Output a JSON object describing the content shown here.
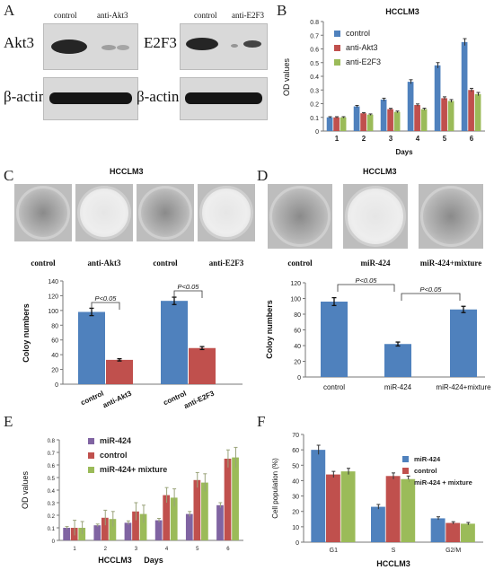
{
  "panels": {
    "A": {
      "letter": "A",
      "left": {
        "lanes": [
          "control",
          "anti-Akt3"
        ],
        "protein": "Akt3",
        "loading": "β-actin"
      },
      "right": {
        "lanes": [
          "control",
          "anti-E2F3"
        ],
        "protein": "E2F3",
        "loading": "β-actin"
      }
    },
    "B": {
      "letter": "B",
      "title": "HCCLM3"
    },
    "C": {
      "letter": "C",
      "title": "HCCLM3",
      "dish_labels": [
        "control",
        "anti-Akt3",
        "control",
        "anti-E2F3"
      ]
    },
    "D": {
      "letter": "D",
      "title": "HCCLM3",
      "dish_labels": [
        "control",
        "miR-424",
        "miR-424+mixture"
      ]
    },
    "E": {
      "letter": "E"
    },
    "F": {
      "letter": "F"
    }
  },
  "chart_data": [
    {
      "id": "B",
      "type": "bar",
      "title": "HCCLM3",
      "ylabel": "OD values",
      "xlabel": "Days",
      "categories": [
        "1",
        "2",
        "3",
        "4",
        "5",
        "6"
      ],
      "ylim": [
        0,
        0.8
      ],
      "yticks": [
        "0",
        "0.1",
        "0.2",
        "0.3",
        "0.4",
        "0.5",
        "0.6",
        "0.7",
        "0.8"
      ],
      "legend_position": "top-left",
      "series": [
        {
          "name": "control",
          "color": "#4f81bd",
          "values": [
            0.1,
            0.18,
            0.23,
            0.36,
            0.48,
            0.65
          ],
          "errors": [
            0.005,
            0.007,
            0.01,
            0.015,
            0.02,
            0.025
          ]
        },
        {
          "name": "anti-Akt3",
          "color": "#c0504d",
          "values": [
            0.1,
            0.13,
            0.16,
            0.19,
            0.24,
            0.3
          ],
          "errors": [
            0.005,
            0.005,
            0.006,
            0.008,
            0.01,
            0.012
          ]
        },
        {
          "name": "anti-E2F3",
          "color": "#9bbb59",
          "values": [
            0.1,
            0.12,
            0.14,
            0.16,
            0.22,
            0.27
          ],
          "errors": [
            0.005,
            0.005,
            0.006,
            0.007,
            0.01,
            0.012
          ]
        }
      ]
    },
    {
      "id": "C",
      "type": "bar",
      "ylabel": "Coloy numbers",
      "categories": [
        "control",
        "anti-Akt3",
        "control",
        "anti-E2F3"
      ],
      "ylim": [
        0,
        140
      ],
      "yticks": [
        "0",
        "20",
        "40",
        "60",
        "80",
        "100",
        "120",
        "140"
      ],
      "values": [
        98,
        33,
        113,
        49
      ],
      "errors": [
        5,
        1.5,
        5,
        2
      ],
      "colors": [
        "#4f81bd",
        "#c0504d",
        "#4f81bd",
        "#c0504d"
      ],
      "annotations": [
        {
          "text": "P<0.05",
          "between": [
            0,
            1
          ]
        },
        {
          "text": "P<0.05",
          "between": [
            2,
            3
          ]
        }
      ]
    },
    {
      "id": "D",
      "type": "bar",
      "ylabel": "Coloy numbers",
      "categories": [
        "control",
        "miR-424",
        "miR-424+mixture"
      ],
      "ylim": [
        0,
        120
      ],
      "yticks": [
        "0",
        "20",
        "40",
        "60",
        "80",
        "100",
        "120"
      ],
      "values": [
        96,
        42,
        86
      ],
      "errors": [
        5,
        2.5,
        4
      ],
      "colors": [
        "#4f81bd",
        "#4f81bd",
        "#4f81bd"
      ],
      "annotations": [
        {
          "text": "P<0.05",
          "between": [
            0,
            1
          ]
        },
        {
          "text": "P<0.05",
          "between": [
            1,
            2
          ]
        }
      ]
    },
    {
      "id": "E",
      "type": "bar",
      "ylabel": "OD values",
      "xlabel": "Days",
      "xcaption": "HCCLM3",
      "categories": [
        "1",
        "2",
        "3",
        "4",
        "5",
        "6"
      ],
      "ylim": [
        0,
        0.8
      ],
      "yticks": [
        "0",
        "0.1",
        "0.2",
        "0.3",
        "0.4",
        "0.5",
        "0.6",
        "0.7",
        "0.8"
      ],
      "legend_position": "top-left",
      "series": [
        {
          "name": "miR-424",
          "color": "#8064a2",
          "values": [
            0.1,
            0.12,
            0.14,
            0.16,
            0.21,
            0.28
          ],
          "errors": [
            0.01,
            0.01,
            0.015,
            0.015,
            0.02,
            0.02
          ]
        },
        {
          "name": "control",
          "color": "#c0504d",
          "values": [
            0.1,
            0.18,
            0.23,
            0.36,
            0.48,
            0.65
          ],
          "errors": [
            0.06,
            0.06,
            0.07,
            0.06,
            0.06,
            0.07
          ]
        },
        {
          "name": "miR-424+ mixture",
          "color": "#9bbb59",
          "values": [
            0.1,
            0.17,
            0.21,
            0.34,
            0.46,
            0.66
          ],
          "errors": [
            0.05,
            0.06,
            0.07,
            0.07,
            0.07,
            0.08
          ]
        }
      ]
    },
    {
      "id": "F",
      "type": "bar",
      "ylabel": "Cell population (%)",
      "xcaption": "HCCLM3",
      "categories": [
        "G1",
        "S",
        "G2/M"
      ],
      "ylim": [
        0,
        70
      ],
      "yticks": [
        "0",
        "10",
        "20",
        "30",
        "40",
        "50",
        "60",
        "70"
      ],
      "legend_position": "top-right",
      "series": [
        {
          "name": "miR-424",
          "color": "#4f81bd",
          "values": [
            60,
            23,
            15.5
          ],
          "errors": [
            3,
            1.5,
            1
          ]
        },
        {
          "name": "control",
          "color": "#c0504d",
          "values": [
            44,
            43,
            12.5
          ],
          "errors": [
            2,
            2,
            0.8
          ]
        },
        {
          "name": "miR-424 + mixture",
          "color": "#9bbb59",
          "values": [
            46,
            41,
            12
          ],
          "errors": [
            2,
            2,
            0.8
          ]
        }
      ]
    }
  ]
}
